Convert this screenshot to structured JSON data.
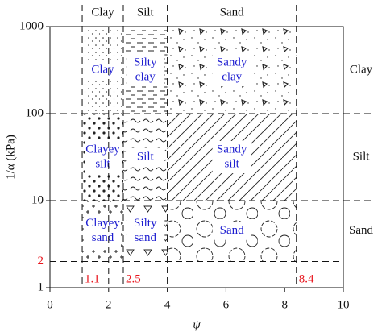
{
  "chart_data": {
    "type": "zones",
    "xlabel": "ψ",
    "ylabel": "1/α (kPa)",
    "xlim": [
      0,
      10
    ],
    "ylim": [
      1,
      1000
    ],
    "ylog": true,
    "xticks": [
      0,
      2,
      4,
      6,
      8,
      10
    ],
    "yticks": [
      1,
      10,
      100,
      1000
    ],
    "x_markers": [
      1.1,
      2.5,
      8.4
    ],
    "y_markers": [
      2
    ],
    "x_dividers": [
      2,
      4
    ],
    "y_dividers": [
      10,
      100
    ],
    "marker_color": "#e8141c",
    "label_color": "#1d1dd0",
    "columns": [
      "Clay",
      "Silt",
      "Sand"
    ],
    "rows": [
      "Clay",
      "Silt",
      "Sand"
    ],
    "zones": [
      [
        [
          "Clay"
        ],
        [
          "Silty",
          "clay"
        ],
        [
          "Sandy",
          "clay"
        ]
      ],
      [
        [
          "Clayey",
          "silt"
        ],
        [
          "Silt"
        ],
        [
          "Sandy",
          "silt"
        ]
      ],
      [
        [
          "Clayey",
          "sand"
        ],
        [
          "Silty",
          "sand"
        ],
        [
          "Sand"
        ]
      ]
    ]
  }
}
